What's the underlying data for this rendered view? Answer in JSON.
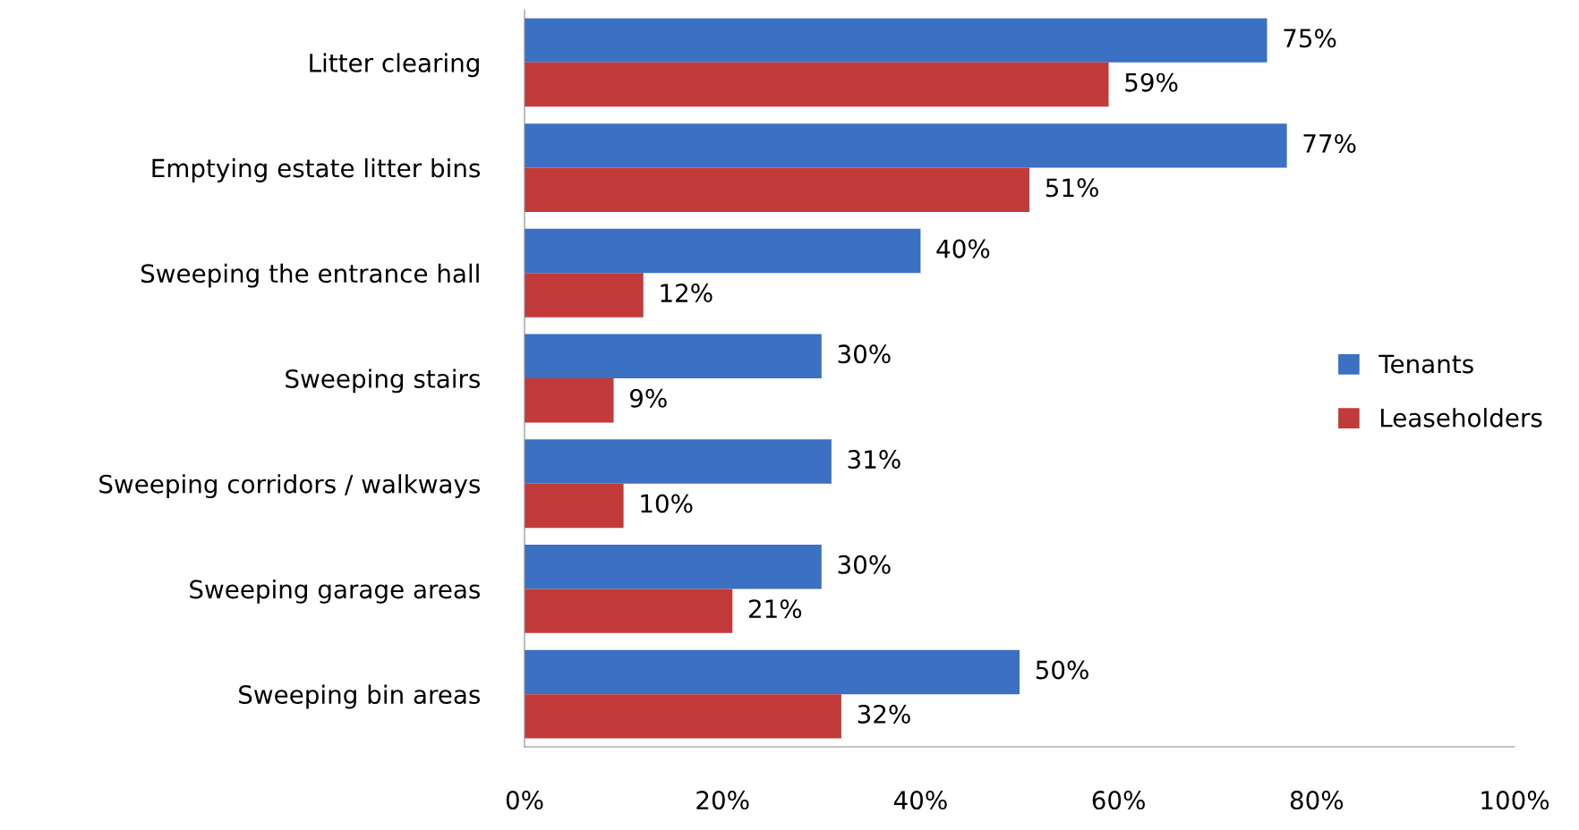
{
  "chart_data": {
    "type": "bar",
    "orientation": "horizontal",
    "categories": [
      "Litter clearing",
      "Emptying estate litter bins",
      "Sweeping the entrance hall",
      "Sweeping stairs",
      "Sweeping corridors / walkways",
      "Sweeping garage areas",
      "Sweeping bin areas"
    ],
    "series": [
      {
        "name": "Tenants",
        "color": "#3b70c2",
        "values": [
          75,
          77,
          40,
          30,
          31,
          30,
          50
        ],
        "value_labels": [
          "75%",
          "77%",
          "40%",
          "30%",
          "31%",
          "30%",
          "50%"
        ]
      },
      {
        "name": "Leaseholders",
        "color": "#c23a3a",
        "values": [
          59,
          51,
          12,
          9,
          10,
          21,
          32
        ],
        "value_labels": [
          "59%",
          "51%",
          "12%",
          "9%",
          "10%",
          "21%",
          "32%"
        ]
      }
    ],
    "xlim": [
      0,
      100
    ],
    "xticks": [
      {
        "value": 0,
        "label": "0%"
      },
      {
        "value": 20,
        "label": "20%"
      },
      {
        "value": 40,
        "label": "40%"
      },
      {
        "value": 60,
        "label": "60%"
      },
      {
        "value": 80,
        "label": "80%"
      },
      {
        "value": 100,
        "label": "100%"
      }
    ],
    "grid": false,
    "legend": "right"
  }
}
